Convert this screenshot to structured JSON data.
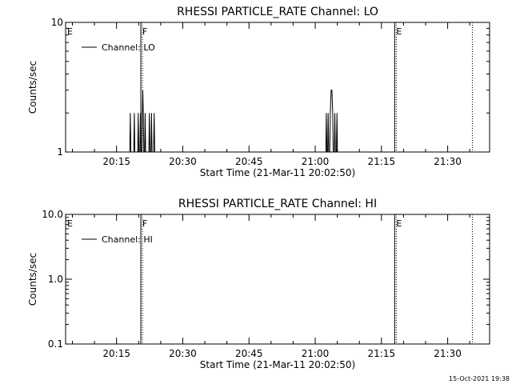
{
  "chart_data": [
    {
      "type": "line",
      "title": "RHESSI PARTICLE_RATE Channel: LO",
      "xlabel": "Start Time (21-Mar-11 20:02:50)",
      "ylabel": "Counts/sec",
      "y_scale": "log",
      "ylim": [
        1,
        10
      ],
      "y_ticks": [
        {
          "value": 1,
          "label": "1"
        },
        {
          "value": 10,
          "label": "10"
        }
      ],
      "x_range_minutes": [
        20.0577,
        21.6583
      ],
      "x_ticks": [
        {
          "value": 20.25,
          "label": "20:15"
        },
        {
          "value": 20.5,
          "label": "20:30"
        },
        {
          "value": 20.75,
          "label": "20:45"
        },
        {
          "value": 21.0,
          "label": "21:00"
        },
        {
          "value": 21.25,
          "label": "21:15"
        },
        {
          "value": 21.5,
          "label": "21:30"
        }
      ],
      "legend": {
        "label": "Channel: LO",
        "placement": "top-left"
      },
      "markers": [
        {
          "label": "E",
          "time": 20.0577,
          "style": "none"
        },
        {
          "label": "F",
          "time": 20.3417,
          "style": "solid"
        },
        {
          "label": "E",
          "time": 21.3,
          "style": "solid"
        },
        {
          "label": "",
          "time": 21.5933,
          "style": "dotted"
        }
      ],
      "series": [
        {
          "name": "Channel: LO",
          "points": [
            [
              20.3,
              1
            ],
            [
              20.302,
              2
            ],
            [
              20.304,
              1
            ],
            [
              20.315,
              1
            ],
            [
              20.317,
              2
            ],
            [
              20.319,
              1
            ],
            [
              20.33,
              1
            ],
            [
              20.332,
              2
            ],
            [
              20.334,
              1
            ],
            [
              20.338,
              1
            ],
            [
              20.34,
              2
            ],
            [
              20.342,
              1
            ],
            [
              20.345,
              1
            ],
            [
              20.347,
              2
            ],
            [
              20.349,
              3
            ],
            [
              20.351,
              2
            ],
            [
              20.353,
              1
            ],
            [
              20.356,
              1
            ],
            [
              20.358,
              2
            ],
            [
              20.36,
              1
            ],
            [
              20.372,
              1
            ],
            [
              20.374,
              2
            ],
            [
              20.376,
              1
            ],
            [
              20.38,
              1
            ],
            [
              20.382,
              2
            ],
            [
              20.384,
              1
            ],
            [
              20.39,
              1
            ],
            [
              20.392,
              2
            ],
            [
              20.394,
              1
            ],
            [
              21.04,
              1
            ],
            [
              21.042,
              2
            ],
            [
              21.044,
              1
            ],
            [
              21.047,
              1
            ],
            [
              21.049,
              2
            ],
            [
              21.051,
              1
            ],
            [
              21.055,
              1
            ],
            [
              21.057,
              2
            ],
            [
              21.06,
              3
            ],
            [
              21.063,
              3
            ],
            [
              21.066,
              2
            ],
            [
              21.068,
              1
            ],
            [
              21.072,
              1
            ],
            [
              21.074,
              2
            ],
            [
              21.076,
              1
            ],
            [
              21.08,
              1
            ],
            [
              21.082,
              2
            ],
            [
              21.084,
              1
            ]
          ]
        }
      ]
    },
    {
      "type": "line",
      "title": "RHESSI PARTICLE_RATE Channel: HI",
      "xlabel": "Start Time (21-Mar-11 20:02:50)",
      "ylabel": "Counts/sec",
      "y_scale": "log",
      "ylim": [
        0.1,
        10
      ],
      "y_ticks": [
        {
          "value": 0.1,
          "label": "0.1"
        },
        {
          "value": 1,
          "label": "1.0"
        },
        {
          "value": 10,
          "label": "10.0"
        }
      ],
      "x_range_minutes": [
        20.0577,
        21.6583
      ],
      "x_ticks": [
        {
          "value": 20.25,
          "label": "20:15"
        },
        {
          "value": 20.5,
          "label": "20:30"
        },
        {
          "value": 20.75,
          "label": "20:45"
        },
        {
          "value": 21.0,
          "label": "21:00"
        },
        {
          "value": 21.25,
          "label": "21:15"
        },
        {
          "value": 21.5,
          "label": "21:30"
        }
      ],
      "legend": {
        "label": "Channel: HI",
        "placement": "top-left"
      },
      "markers": [
        {
          "label": "E",
          "time": 20.0577,
          "style": "none"
        },
        {
          "label": "F",
          "time": 20.3417,
          "style": "solid"
        },
        {
          "label": "E",
          "time": 21.3,
          "style": "solid"
        },
        {
          "label": "",
          "time": 21.5933,
          "style": "dotted"
        }
      ],
      "series": [
        {
          "name": "Channel: HI",
          "points": []
        }
      ]
    }
  ],
  "footer": {
    "timestamp": "15-Oct-2021 19:38"
  }
}
